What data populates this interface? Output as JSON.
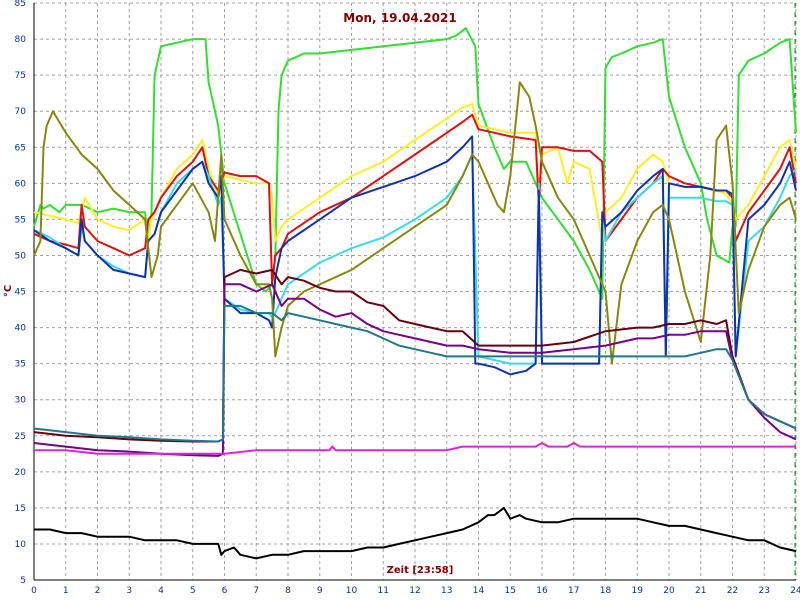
{
  "chart_data": {
    "type": "line",
    "title": "Mon, 19.04.2021",
    "xlabel": "Zeit [23:58]",
    "ylabel": "°C",
    "xlim": [
      0,
      24
    ],
    "ylim": [
      5,
      85
    ],
    "xticks": [
      0,
      1,
      2,
      3,
      4,
      5,
      6,
      7,
      8,
      9,
      10,
      11,
      12,
      13,
      14,
      15,
      16,
      17,
      18,
      19,
      20,
      21,
      22,
      23,
      24
    ],
    "yticks": [
      5,
      10,
      15,
      20,
      25,
      30,
      35,
      40,
      45,
      50,
      55,
      60,
      65,
      70,
      75,
      80,
      85
    ],
    "grid": true,
    "current_time_marker": 23.97,
    "colors": {
      "background": "#ffffff",
      "grid": "#a0a0a0",
      "text": "#800000",
      "ticks": "#003399",
      "marker": "#008000"
    },
    "series": [
      {
        "color": "#33dd33",
        "x": [
          0.0,
          0.2,
          0.3,
          0.5,
          0.8,
          1.0,
          1.5,
          2.0,
          2.5,
          3.0,
          3.5,
          3.6,
          3.7,
          3.8,
          4.0,
          4.5,
          5.0,
          5.2,
          5.4,
          5.5,
          5.8,
          6.0,
          6.5,
          7.0,
          7.3,
          7.5,
          7.6,
          7.7,
          7.8,
          8.0,
          8.5,
          9.0,
          10.0,
          11.0,
          12.0,
          13.0,
          13.3,
          13.6,
          13.9,
          14.0,
          14.5,
          14.8,
          15.0,
          15.5,
          16.0,
          17.0,
          17.5,
          17.8,
          17.9,
          18.0,
          18.2,
          18.5,
          19.0,
          19.5,
          19.8,
          20.0,
          20.5,
          21.0,
          21.2,
          21.5,
          21.9,
          22.0,
          22.1,
          22.2,
          22.5,
          23.0,
          23.5,
          23.8,
          24.0
        ],
        "y": [
          54,
          57,
          56.5,
          57,
          56,
          57,
          57,
          56,
          56.5,
          56,
          56,
          52,
          56,
          75,
          79,
          79.5,
          80,
          80,
          80,
          74,
          68,
          60,
          53,
          46,
          45,
          46,
          50,
          70,
          75,
          77,
          78,
          78,
          78.5,
          79,
          79.5,
          80,
          80.5,
          81.5,
          79,
          71,
          65,
          62,
          63,
          63,
          58,
          52,
          48,
          45,
          44,
          76,
          77.5,
          78,
          79,
          79.5,
          80,
          72,
          65,
          60,
          55,
          50,
          49,
          54,
          54,
          75,
          77,
          78,
          79.5,
          80,
          67
        ]
      },
      {
        "color": "#ffee22",
        "x": [
          0.0,
          0.5,
          1.0,
          1.4,
          1.6,
          2.0,
          2.5,
          3.0,
          3.5,
          3.6,
          3.7,
          4.0,
          4.5,
          5.0,
          5.3,
          5.5,
          5.8,
          6.0,
          6.5,
          7.0,
          7.4,
          7.5,
          7.6,
          7.8,
          8.0,
          9.0,
          10.0,
          11.0,
          12.0,
          13.0,
          13.5,
          13.8,
          14.0,
          15.0,
          15.8,
          15.9,
          16.0,
          16.5,
          16.8,
          17.0,
          17.5,
          17.9,
          18.0,
          18.5,
          19.0,
          19.5,
          19.8,
          20.0,
          20.5,
          21.0,
          21.5,
          21.8,
          22.0,
          22.1,
          22.5,
          23.0,
          23.5,
          23.8,
          24.0
        ],
        "y": [
          56,
          55.5,
          55,
          54.5,
          58,
          55,
          54,
          53.5,
          55,
          52,
          55,
          58,
          62,
          64,
          66,
          62,
          58,
          61,
          60.5,
          60,
          60,
          58,
          52,
          54,
          55,
          58,
          61,
          63,
          66,
          69,
          70.5,
          71,
          68,
          67,
          67,
          58,
          64,
          65,
          60,
          63,
          62,
          52,
          56,
          58,
          62,
          64,
          63,
          60,
          59.5,
          59.5,
          59,
          58.5,
          57,
          55,
          57,
          61,
          65,
          66,
          62
        ]
      },
      {
        "color": "#dd1111",
        "x": [
          0.0,
          0.5,
          1.0,
          1.4,
          1.5,
          1.6,
          2.0,
          2.5,
          3.0,
          3.5,
          3.6,
          3.8,
          4.0,
          4.5,
          5.0,
          5.3,
          5.5,
          5.8,
          6.0,
          6.5,
          7.0,
          7.4,
          7.5,
          7.6,
          7.8,
          8.0,
          9.0,
          10.0,
          11.0,
          12.0,
          13.0,
          13.5,
          13.8,
          14.0,
          15.0,
          15.8,
          15.9,
          16.0,
          16.5,
          17.0,
          17.5,
          17.9,
          18.0,
          18.5,
          19.0,
          19.5,
          19.8,
          20.0,
          20.5,
          21.0,
          21.5,
          21.8,
          22.0,
          22.1,
          22.5,
          23.0,
          23.5,
          23.8,
          24.0
        ],
        "y": [
          53,
          52,
          51.5,
          51,
          57,
          54,
          52,
          51,
          50,
          51,
          55,
          56,
          58,
          61,
          63,
          65,
          61,
          59,
          61.5,
          61,
          61,
          60,
          46,
          50,
          51,
          53,
          56,
          58,
          61,
          64,
          67,
          68.5,
          69.5,
          67.5,
          66.5,
          66,
          57,
          65,
          65,
          64.5,
          64.5,
          63,
          52,
          55,
          58,
          60,
          62,
          61,
          60,
          59.5,
          59,
          59,
          58,
          52,
          56,
          59,
          62,
          65,
          60
        ]
      },
      {
        "color": "#33ddee",
        "x": [
          0.0,
          0.5,
          1.0,
          1.4,
          1.5,
          1.6,
          2.0,
          2.5,
          3.0,
          3.5,
          3.6,
          3.8,
          4.0,
          4.5,
          5.0,
          5.3,
          5.5,
          5.8,
          5.9,
          6.0,
          6.5,
          7.0,
          7.4,
          7.5,
          7.6,
          7.8,
          8.0,
          9.0,
          10.0,
          11.0,
          12.0,
          13.0,
          13.5,
          13.8,
          14.0,
          15.0,
          15.8,
          15.9,
          16.0,
          17.0,
          17.8,
          17.9,
          18.0,
          18.5,
          19.0,
          19.5,
          19.8,
          19.9,
          20.0,
          20.5,
          21.0,
          21.5,
          21.8,
          22.0,
          22.1,
          22.5,
          23.0,
          23.5,
          23.8,
          24.0
        ],
        "y": [
          53.5,
          52.5,
          51,
          50,
          54,
          52,
          50,
          48.5,
          47.5,
          47,
          52,
          53,
          56,
          60,
          62,
          63,
          61,
          57,
          58,
          44,
          42.5,
          42,
          42,
          41.5,
          42,
          44,
          46,
          49,
          51,
          52.5,
          55,
          58,
          61,
          64,
          36,
          35,
          35,
          60,
          35,
          35,
          35,
          55,
          52,
          56,
          58,
          60,
          61,
          36,
          58,
          58,
          58,
          57.5,
          57.5,
          57,
          36,
          52,
          54,
          58,
          61,
          62
        ]
      },
      {
        "color": "#1133aa",
        "x": [
          0.0,
          0.5,
          1.0,
          1.4,
          1.5,
          1.6,
          2.0,
          2.5,
          3.0,
          3.5,
          3.6,
          3.8,
          4.0,
          4.5,
          5.0,
          5.3,
          5.5,
          5.8,
          5.9,
          6.0,
          6.5,
          7.0,
          7.4,
          7.5,
          7.6,
          7.8,
          8.0,
          9.0,
          10.0,
          11.0,
          12.0,
          13.0,
          13.5,
          13.8,
          13.9,
          14.0,
          14.5,
          15.0,
          15.5,
          15.8,
          15.9,
          16.0,
          17.0,
          17.8,
          17.9,
          18.0,
          18.5,
          19.0,
          19.5,
          19.8,
          19.9,
          20.0,
          20.5,
          21.0,
          21.5,
          21.8,
          22.0,
          22.1,
          22.5,
          23.0,
          23.5,
          23.8,
          24.0
        ],
        "y": [
          53.5,
          52,
          51,
          50,
          55,
          52,
          50,
          48,
          47.5,
          47,
          52,
          53,
          56,
          59,
          62,
          63,
          60,
          58,
          61,
          44,
          42,
          42,
          41,
          40,
          47,
          51,
          52,
          55,
          58,
          59.5,
          61,
          63,
          65,
          66.5,
          35,
          35,
          34.5,
          33.5,
          34,
          35,
          59,
          35,
          35,
          35,
          56,
          54,
          56,
          59,
          61,
          62,
          36,
          60,
          59.5,
          59.5,
          59,
          59,
          58.5,
          36,
          55,
          57,
          60,
          63,
          59
        ]
      },
      {
        "color": "#888811",
        "x": [
          0.0,
          0.2,
          0.3,
          0.4,
          0.6,
          1.0,
          1.5,
          2.0,
          2.5,
          3.0,
          3.5,
          3.7,
          3.9,
          4.0,
          4.5,
          5.0,
          5.5,
          5.7,
          5.9,
          6.0,
          6.5,
          7.0,
          7.4,
          7.5,
          7.6,
          7.8,
          8.0,
          8.5,
          9.0,
          10.0,
          11.0,
          12.0,
          13.0,
          13.5,
          13.8,
          14.0,
          14.3,
          14.6,
          14.8,
          15.0,
          15.3,
          15.6,
          15.8,
          16.0,
          16.5,
          17.0,
          17.5,
          17.8,
          18.0,
          18.2,
          18.5,
          19.0,
          19.5,
          19.8,
          20.0,
          20.5,
          21.0,
          21.3,
          21.5,
          21.8,
          22.0,
          22.2,
          22.5,
          23.0,
          23.5,
          23.8,
          24.0
        ],
        "y": [
          50,
          52,
          65,
          68,
          70,
          67,
          64,
          62,
          59,
          57,
          55,
          47,
          50,
          54,
          57,
          60,
          56,
          52,
          64,
          55,
          50,
          46,
          46,
          44,
          36,
          40,
          43,
          45,
          46,
          48,
          51,
          54,
          57,
          61,
          64,
          63,
          60,
          57,
          56,
          61,
          74,
          72,
          68,
          63,
          58,
          55,
          50,
          47,
          45,
          35,
          46,
          52,
          56,
          57,
          55,
          45,
          38,
          50,
          66,
          68,
          60,
          42,
          48,
          54,
          57,
          58,
          55
        ]
      },
      {
        "color": "#660011",
        "x": [
          0.0,
          1.0,
          2.0,
          3.0,
          4.0,
          5.0,
          5.8,
          5.95,
          6.0,
          6.5,
          7.0,
          7.5,
          7.8,
          8.0,
          8.5,
          9.0,
          9.5,
          10.0,
          10.5,
          11.0,
          11.5,
          12.0,
          12.5,
          13.0,
          13.5,
          14.0,
          15.0,
          16.0,
          17.0,
          18.0,
          19.0,
          19.5,
          20.0,
          20.5,
          21.0,
          21.5,
          21.8,
          22.0,
          22.5,
          23.0,
          23.5,
          24.0
        ],
        "y": [
          25.5,
          25,
          24.8,
          24.5,
          24.3,
          24.2,
          24.2,
          24.5,
          47,
          48,
          47.5,
          48,
          46,
          47,
          46.5,
          45.5,
          45,
          45,
          43.5,
          43,
          41,
          40.5,
          40,
          39.5,
          39.5,
          37.5,
          37.5,
          37.5,
          38,
          39.5,
          40,
          40,
          40.5,
          40.5,
          41,
          40.5,
          41,
          36,
          30,
          28,
          27,
          26
        ]
      },
      {
        "color": "#770088",
        "x": [
          0.0,
          1.0,
          2.0,
          3.0,
          4.0,
          5.0,
          5.8,
          5.95,
          6.0,
          6.5,
          7.0,
          7.5,
          7.8,
          8.0,
          8.5,
          9.0,
          9.5,
          10.0,
          10.5,
          11.0,
          11.5,
          12.0,
          12.5,
          13.0,
          13.5,
          14.0,
          15.0,
          16.0,
          17.0,
          18.0,
          19.0,
          19.5,
          20.0,
          20.5,
          21.0,
          21.5,
          21.8,
          22.0,
          22.5,
          23.0,
          23.5,
          24.0
        ],
        "y": [
          24,
          23.5,
          23,
          22.8,
          22.5,
          22.3,
          22.2,
          22.5,
          46,
          46,
          45,
          46,
          43,
          44,
          44,
          42.5,
          41.5,
          42,
          40.5,
          39.5,
          39,
          38.5,
          38,
          37.5,
          37.5,
          37,
          36.5,
          36.5,
          37,
          37.5,
          38.5,
          38.5,
          39,
          39,
          39.5,
          39.5,
          39.5,
          35.5,
          30,
          27.5,
          25.5,
          24.5
        ]
      },
      {
        "color": "#227788",
        "x": [
          0.0,
          1.0,
          2.0,
          3.0,
          4.0,
          5.0,
          5.8,
          5.95,
          6.0,
          6.5,
          7.0,
          7.5,
          7.8,
          8.0,
          8.5,
          9.0,
          9.5,
          10.0,
          10.5,
          11.0,
          11.5,
          12.0,
          12.5,
          13.0,
          13.5,
          14.0,
          15.0,
          16.0,
          17.0,
          18.0,
          19.0,
          19.5,
          20.0,
          20.5,
          21.0,
          21.5,
          21.8,
          22.0,
          22.5,
          23.0,
          23.5,
          24.0
        ],
        "y": [
          26,
          25.5,
          25,
          24.8,
          24.5,
          24.3,
          24.2,
          24.5,
          43,
          43,
          42,
          42,
          41,
          42,
          41.5,
          41,
          40.5,
          40,
          39.5,
          38.5,
          37.5,
          37,
          36.5,
          36,
          36,
          36,
          36,
          36,
          36,
          36,
          36,
          36,
          36,
          36,
          36.5,
          37,
          37,
          35.5,
          30,
          28,
          27,
          26
        ]
      },
      {
        "color": "#dd22dd",
        "x": [
          0.0,
          1.0,
          2.0,
          3.0,
          4.0,
          5.0,
          6.0,
          7.0,
          8.0,
          9.0,
          9.3,
          9.4,
          9.5,
          10.0,
          11.0,
          12.0,
          13.0,
          13.5,
          14.0,
          15.0,
          15.8,
          16.0,
          16.2,
          16.8,
          17.0,
          17.2,
          18.0,
          19.0,
          20.0,
          21.0,
          22.0,
          23.0,
          24.0
        ],
        "y": [
          23,
          23,
          22.5,
          22.5,
          22.5,
          22.5,
          22.5,
          23,
          23,
          23,
          23,
          23.5,
          23,
          23,
          23,
          23,
          23,
          23.5,
          23.5,
          23.5,
          23.5,
          24,
          23.5,
          23.5,
          24,
          23.5,
          23.5,
          23.5,
          23.5,
          23.5,
          23.5,
          23.5,
          23.5
        ]
      },
      {
        "color": "#000000",
        "x": [
          0.0,
          0.5,
          1.0,
          1.5,
          2.0,
          2.5,
          3.0,
          3.5,
          4.0,
          4.5,
          5.0,
          5.5,
          5.8,
          5.9,
          6.0,
          6.3,
          6.5,
          7.0,
          7.5,
          8.0,
          8.5,
          9.0,
          9.5,
          10.0,
          10.5,
          11.0,
          11.5,
          12.0,
          12.5,
          13.0,
          13.5,
          14.0,
          14.3,
          14.5,
          14.8,
          15.0,
          15.3,
          15.5,
          16.0,
          16.5,
          17.0,
          17.5,
          18.0,
          18.5,
          19.0,
          19.5,
          20.0,
          20.5,
          21.0,
          21.5,
          22.0,
          22.5,
          23.0,
          23.5,
          24.0
        ],
        "y": [
          12,
          12,
          11.5,
          11.5,
          11,
          11,
          11,
          10.5,
          10.5,
          10.5,
          10,
          10,
          10,
          8.5,
          9,
          9.5,
          8.5,
          8,
          8.5,
          8.5,
          9,
          9,
          9,
          9,
          9.5,
          9.5,
          10,
          10.5,
          11,
          11.5,
          12,
          13,
          14,
          14,
          15,
          13.5,
          14,
          13.5,
          13,
          13,
          13.5,
          13.5,
          13.5,
          13.5,
          13.5,
          13,
          12.5,
          12.5,
          12,
          11.5,
          11,
          10.5,
          10.5,
          9.5,
          9
        ]
      }
    ]
  }
}
